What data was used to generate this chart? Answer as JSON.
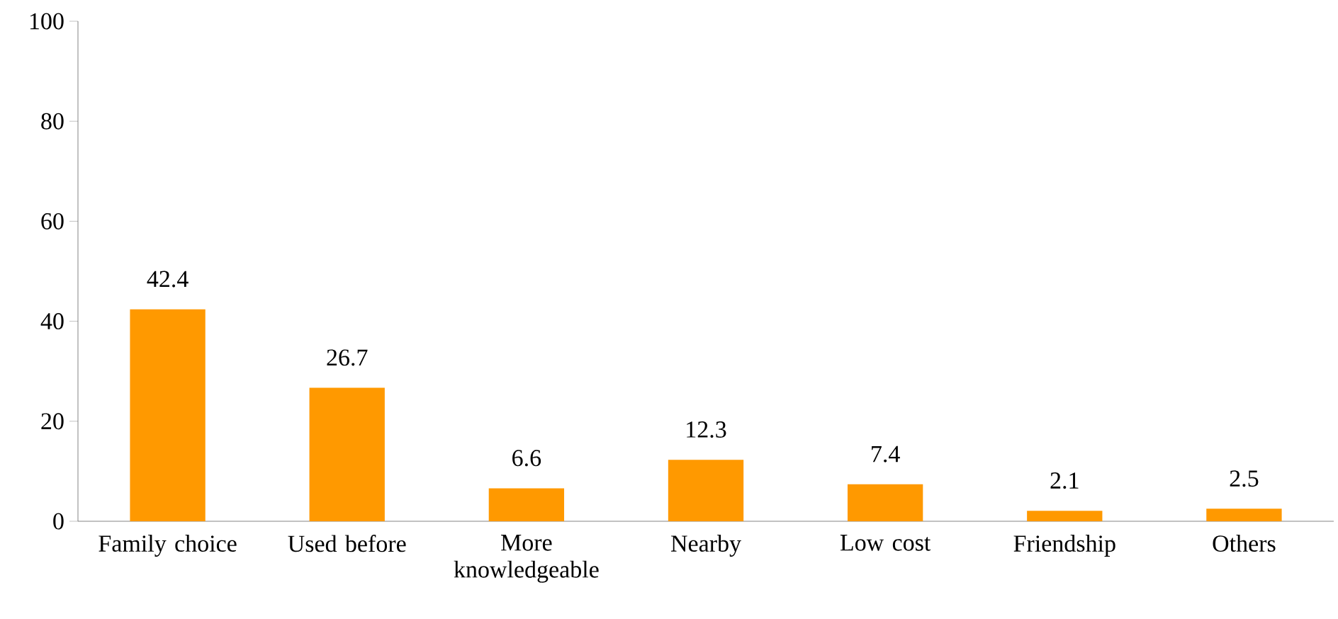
{
  "chart_data": {
    "type": "bar",
    "categories": [
      "Family choice",
      "Used before",
      "More knowledgeable",
      "Nearby",
      "Low cost",
      "Friendship",
      "Others"
    ],
    "values": [
      42.4,
      26.7,
      6.6,
      12.3,
      7.4,
      2.1,
      2.5
    ],
    "color": "#ff9900",
    "ylim": [
      0,
      100
    ],
    "yticks": [
      0,
      20,
      40,
      60,
      80,
      100
    ],
    "data_labels": true
  }
}
